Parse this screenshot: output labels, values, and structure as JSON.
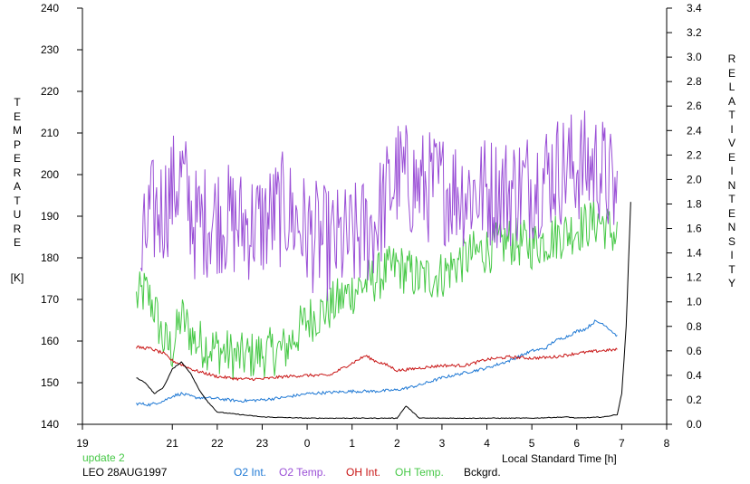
{
  "chart_data": {
    "type": "line",
    "title": "",
    "xlabel": "Local Standard Time [h]",
    "ylabel_left": "TEMPERATURE",
    "ylabel_left_unit": "[K]",
    "ylabel_right": "RELATIVE INTENSITY",
    "x_ticks": [
      "19",
      "21",
      "22",
      "23",
      "0",
      "1",
      "2",
      "3",
      "4",
      "5",
      "6",
      "7",
      "8"
    ],
    "x_range": [
      19,
      32
    ],
    "y_left_range": [
      140,
      240
    ],
    "y_left_ticks": [
      140,
      150,
      160,
      170,
      180,
      190,
      200,
      210,
      220,
      230,
      240
    ],
    "y_right_range": [
      0.0,
      3.4
    ],
    "y_right_ticks": [
      "0.0",
      "0.2",
      "0.4",
      "0.6",
      "0.8",
      "1.0",
      "1.2",
      "1.4",
      "1.6",
      "1.8",
      "2.0",
      "2.2",
      "2.4",
      "2.6",
      "2.8",
      "3.0",
      "3.2",
      "3.4"
    ],
    "grid": false,
    "legend_placement": "bottom",
    "annotation_status": "update 2",
    "annotation_station": "LEO 28AUG1997",
    "series": [
      {
        "name": "O2 Int.",
        "axis": "right",
        "color": "#1e78d4",
        "noise": 0.012,
        "x": [
          20.2,
          20.5,
          20.8,
          21.0,
          21.2,
          21.5,
          22.0,
          22.5,
          23.0,
          23.5,
          24.0,
          24.5,
          25.0,
          25.5,
          26.0,
          26.5,
          27.0,
          27.5,
          28.0,
          28.5,
          29.0,
          29.3,
          29.5,
          29.8,
          30.0,
          30.2,
          30.4,
          30.6,
          30.9
        ],
        "y": [
          0.17,
          0.16,
          0.19,
          0.23,
          0.25,
          0.22,
          0.21,
          0.19,
          0.2,
          0.22,
          0.25,
          0.26,
          0.27,
          0.27,
          0.28,
          0.32,
          0.38,
          0.42,
          0.46,
          0.52,
          0.6,
          0.62,
          0.68,
          0.72,
          0.76,
          0.78,
          0.84,
          0.82,
          0.72
        ]
      },
      {
        "name": "O2 Temp.",
        "axis": "left",
        "color": "#9a4fd6",
        "noise": 14,
        "x": [
          20.3,
          20.5,
          20.8,
          21.0,
          21.2,
          21.5,
          22.0,
          22.5,
          23.0,
          23.5,
          24.0,
          24.5,
          25.0,
          25.5,
          26.0,
          26.5,
          27.0,
          27.5,
          28.0,
          28.5,
          29.0,
          29.5,
          30.0,
          30.5,
          30.9
        ],
        "y": [
          178,
          190,
          192,
          196,
          200,
          188,
          190,
          188,
          188,
          192,
          186,
          183,
          184,
          188,
          200,
          197,
          197,
          196,
          196,
          196,
          198,
          201,
          202,
          202,
          194
        ]
      },
      {
        "name": "OH Int.",
        "axis": "right",
        "color": "#c81414",
        "noise": 0.012,
        "x": [
          20.2,
          20.5,
          20.8,
          21.0,
          21.5,
          22.0,
          22.5,
          23.0,
          23.5,
          24.0,
          24.5,
          25.0,
          25.3,
          25.5,
          25.8,
          26.0,
          26.3,
          26.5,
          27.0,
          27.5,
          28.0,
          28.5,
          29.0,
          29.5,
          30.0,
          30.5,
          30.9
        ],
        "y": [
          0.63,
          0.62,
          0.58,
          0.52,
          0.44,
          0.39,
          0.37,
          0.37,
          0.39,
          0.4,
          0.4,
          0.5,
          0.56,
          0.52,
          0.48,
          0.44,
          0.45,
          0.46,
          0.48,
          0.48,
          0.53,
          0.55,
          0.54,
          0.55,
          0.58,
          0.6,
          0.61
        ]
      },
      {
        "name": "OH Temp.",
        "axis": "left",
        "color": "#46c846",
        "noise": 6,
        "x": [
          20.2,
          20.4,
          20.6,
          20.8,
          21.0,
          21.2,
          21.5,
          22.0,
          22.5,
          23.0,
          23.5,
          24.0,
          24.5,
          25.0,
          25.5,
          26.0,
          26.5,
          27.0,
          27.5,
          28.0,
          28.5,
          29.0,
          29.5,
          30.0,
          30.5,
          30.9
        ],
        "y": [
          170,
          172,
          168,
          160,
          158,
          166,
          160,
          158,
          156,
          157,
          158,
          165,
          168,
          172,
          175,
          178,
          175,
          176,
          180,
          182,
          184,
          183,
          185,
          187,
          189,
          185
        ]
      },
      {
        "name": "Bckgrd.",
        "axis": "right",
        "color": "#000000",
        "noise": 0.003,
        "x": [
          20.2,
          20.4,
          20.6,
          20.8,
          21.0,
          21.2,
          21.4,
          21.6,
          21.8,
          22.0,
          22.5,
          23.0,
          24.0,
          25.0,
          26.0,
          26.2,
          26.5,
          27.0,
          27.7,
          28.0,
          28.6,
          29.0,
          29.8,
          30.0,
          30.6,
          30.9,
          31.0,
          31.1,
          31.2
        ],
        "y": [
          0.38,
          0.34,
          0.25,
          0.3,
          0.45,
          0.51,
          0.42,
          0.28,
          0.18,
          0.1,
          0.08,
          0.06,
          0.05,
          0.05,
          0.05,
          0.15,
          0.05,
          0.05,
          0.05,
          0.05,
          0.05,
          0.05,
          0.06,
          0.05,
          0.06,
          0.08,
          0.25,
          0.8,
          1.82
        ]
      }
    ]
  }
}
